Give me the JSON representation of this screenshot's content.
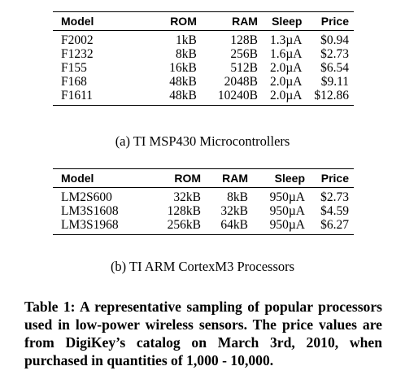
{
  "table_a": {
    "columns": [
      "Model",
      "ROM",
      "RAM",
      "Sleep",
      "Price"
    ],
    "rows": [
      [
        "F2002",
        "1kB",
        "128B",
        "1.3µA",
        "$0.94"
      ],
      [
        "F1232",
        "8kB",
        "256B",
        "1.6µA",
        "$2.73"
      ],
      [
        "F155",
        "16kB",
        "512B",
        "2.0µA",
        "$6.54"
      ],
      [
        "F168",
        "48kB",
        "2048B",
        "2.0µA",
        "$9.11"
      ],
      [
        "F1611",
        "48kB",
        "10240B",
        "2.0µA",
        "$12.86"
      ]
    ],
    "caption": "(a) TI MSP430 Microcontrollers"
  },
  "table_b": {
    "columns": [
      "Model",
      "ROM",
      "RAM",
      "Sleep",
      "Price"
    ],
    "rows": [
      [
        "LM2S600",
        "32kB",
        "8kB",
        "950µA",
        "$2.73"
      ],
      [
        "LM3S1608",
        "128kB",
        "32kB",
        "950µA",
        "$4.59"
      ],
      [
        "LM3S1968",
        "256kB",
        "64kB",
        "950µA",
        "$6.27"
      ]
    ],
    "caption": "(b) TI ARM CortexM3 Processors"
  },
  "main_caption": "Table 1: A representative sampling of popular processors used in low-power wireless sensors. The price values are from DigiKey’s catalog on March 3rd, 2010, when purchased in quantities of 1,000 - 10,000."
}
